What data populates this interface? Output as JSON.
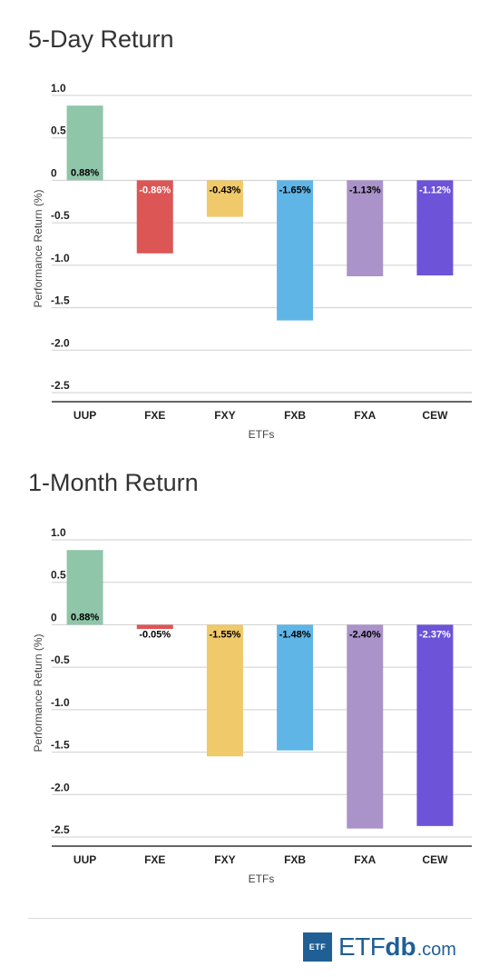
{
  "chart_data": [
    {
      "type": "bar",
      "title": "5-Day Return",
      "xlabel": "ETFs",
      "ylabel": "Performance Return (%)",
      "categories": [
        "UUP",
        "FXE",
        "FXY",
        "FXB",
        "FXA",
        "CEW"
      ],
      "values": [
        0.88,
        -0.86,
        -0.43,
        -1.65,
        -1.13,
        -1.12
      ],
      "data_labels": [
        "0.88%",
        "-0.86%",
        "-0.43%",
        "-1.65%",
        "-1.13%",
        "-1.12%"
      ],
      "colors": [
        "#8fc5a8",
        "#dc5656",
        "#f0c96a",
        "#5fb5e6",
        "#a993c8",
        "#6c53d8"
      ],
      "label_colors": [
        "#000000",
        "#ffffff",
        "#000000",
        "#000000",
        "#000000",
        "#ffffff"
      ],
      "yticks": [
        1.0,
        0.5,
        0,
        -0.5,
        -1.0,
        -1.5,
        -2.0,
        -2.5
      ],
      "ytick_labels": [
        "1.0",
        "0.5",
        "0",
        "-0.5",
        "-1.0",
        "-1.5",
        "-2.0",
        "-2.5"
      ],
      "ylim": [
        -2.5,
        1.0
      ],
      "grid": true
    },
    {
      "type": "bar",
      "title": "1-Month Return",
      "xlabel": "ETFs",
      "ylabel": "Performance Return (%)",
      "categories": [
        "UUP",
        "FXE",
        "FXY",
        "FXB",
        "FXA",
        "CEW"
      ],
      "values": [
        0.88,
        -0.05,
        -1.55,
        -1.48,
        -2.4,
        -2.37
      ],
      "data_labels": [
        "0.88%",
        "-0.05%",
        "-1.55%",
        "-1.48%",
        "-2.40%",
        "-2.37%"
      ],
      "colors": [
        "#8fc5a8",
        "#dc5656",
        "#f0c96a",
        "#5fb5e6",
        "#a993c8",
        "#6c53d8"
      ],
      "label_colors": [
        "#000000",
        "#000000",
        "#000000",
        "#000000",
        "#000000",
        "#ffffff"
      ],
      "yticks": [
        1.0,
        0.5,
        0,
        -0.5,
        -1.0,
        -1.5,
        -2.0,
        -2.5
      ],
      "ytick_labels": [
        "1.0",
        "0.5",
        "0",
        "-0.5",
        "-1.0",
        "-1.5",
        "-2.0",
        "-2.5"
      ],
      "ylim": [
        -2.5,
        1.0
      ],
      "grid": true
    }
  ],
  "footer": {
    "logo_box_text": "ETF",
    "logo_etf": "ETF",
    "logo_db": "db",
    "logo_com": ".com"
  }
}
